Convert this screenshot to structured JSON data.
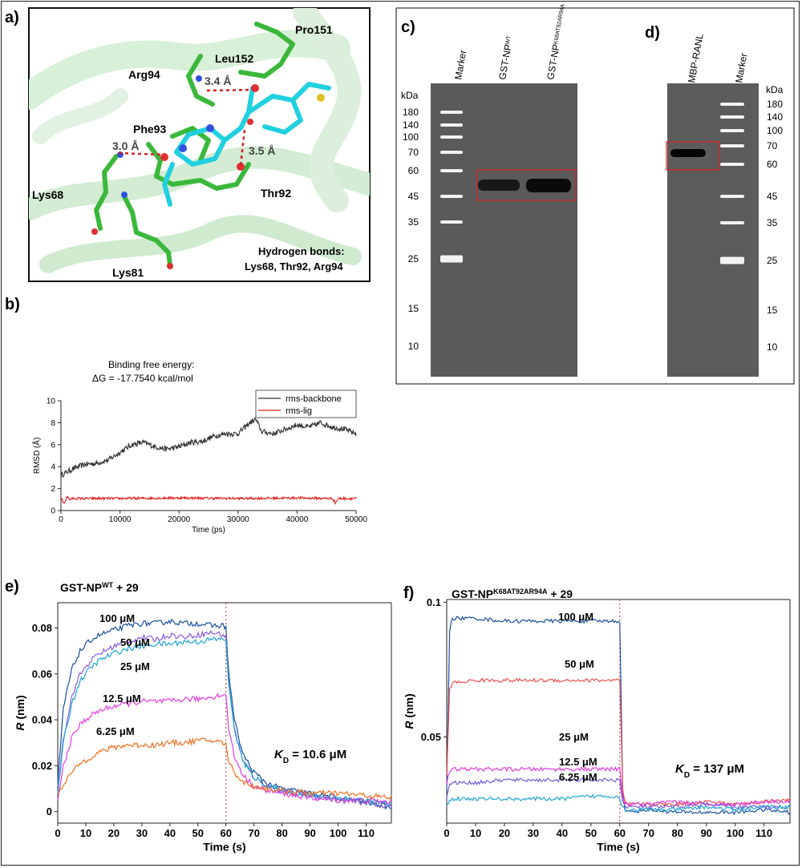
{
  "panels": {
    "a": {
      "letter": "a)",
      "residues": [
        "Pro151",
        "Leu152",
        "Arg94",
        "Phe93",
        "Lys68",
        "Thr92",
        "Lys81"
      ],
      "distances": [
        "3.4 Å",
        "3.0 Å",
        "3.5 Å"
      ],
      "hbond_title": "Hydrogen bonds:",
      "hbond_list": "Lys68, Thr92, Arg94"
    },
    "b": {
      "letter": "b)",
      "title1": "Binding free energy:",
      "title2": "ΔG = -17.7540 kcal/mol"
    },
    "c": {
      "letter": "c)",
      "kda": "kDa",
      "lanes": [
        "Marker",
        "GST-NP",
        "GST-NP"
      ],
      "lane_sup": [
        "",
        "WT",
        "K68AT92AR94A"
      ],
      "marker_sizes": [
        "180",
        "140",
        "100",
        "70",
        "60",
        "45",
        "35",
        "25",
        "15",
        "10"
      ]
    },
    "d": {
      "letter": "d)",
      "kda": "kDa",
      "lanes": [
        "MBP-RANL",
        "Marker"
      ],
      "marker_sizes": [
        "180",
        "140",
        "100",
        "70",
        "60",
        "45",
        "35",
        "25",
        "15",
        "10"
      ]
    },
    "e": {
      "letter": "e)",
      "title": "GST-NP",
      "title_sup": "WT",
      "title_suffix": " + 29",
      "kd_label": "K",
      "kd_sub": "D",
      "kd_value": " = 10.6 μM"
    },
    "f": {
      "letter": "f)",
      "title": "GST-NP",
      "title_sup": "K68AT92AR94A",
      "title_suffix": " + 29",
      "kd_label": "K",
      "kd_sub": "D",
      "kd_value": " = 137  μM"
    }
  },
  "chart_data": [
    {
      "id": "b",
      "type": "line",
      "xlabel": "Time (ps)",
      "ylabel": "RMSD (Å)",
      "xlim": [
        0,
        50000
      ],
      "ylim": [
        0,
        10
      ],
      "xticks": [
        0,
        10000,
        20000,
        30000,
        40000,
        50000
      ],
      "yticks": [
        0,
        2,
        4,
        6,
        8,
        10
      ],
      "legend_position": "top-right",
      "series": [
        {
          "name": "rms-backbone",
          "color": "#333333",
          "x": [
            0,
            2000,
            4000,
            6000,
            8000,
            10000,
            12000,
            14000,
            16000,
            18000,
            20000,
            22000,
            24000,
            26000,
            28000,
            30000,
            32000,
            33000,
            34000,
            36000,
            38000,
            40000,
            42000,
            44000,
            46000,
            48000,
            50000
          ],
          "y": [
            3.2,
            3.8,
            4.2,
            4.3,
            4.6,
            5.3,
            6.0,
            6.2,
            5.8,
            5.6,
            5.8,
            6.2,
            6.3,
            6.8,
            7.0,
            7.0,
            8.0,
            8.3,
            7.2,
            7.0,
            7.4,
            7.8,
            7.6,
            8.0,
            7.6,
            7.4,
            7.0
          ]
        },
        {
          "name": "rms-lig",
          "color": "#e02020",
          "x": [
            0,
            500,
            1000,
            1500,
            2000,
            10000,
            20000,
            30000,
            40000,
            46000,
            46500,
            47000,
            50000
          ],
          "y": [
            1.2,
            0.6,
            1.3,
            1.0,
            1.1,
            1.1,
            1.15,
            1.1,
            1.15,
            1.1,
            0.7,
            1.1,
            1.1
          ]
        }
      ]
    },
    {
      "id": "e",
      "type": "line",
      "xlabel": "Time (s)",
      "ylabel": "R (nm)",
      "xlim": [
        0,
        119
      ],
      "ylim": [
        -0.005,
        0.091
      ],
      "xticks": [
        0,
        10,
        20,
        30,
        40,
        50,
        60,
        70,
        80,
        90,
        100,
        110
      ],
      "yticks": [
        0,
        0.02,
        0.04,
        0.06,
        0.08
      ],
      "vline_x": 60,
      "series": [
        {
          "name": "100 μM",
          "color": "#1a4f9e",
          "x": [
            0,
            2,
            5,
            8,
            12,
            15,
            20,
            25,
            30,
            35,
            40,
            45,
            50,
            55,
            59,
            60,
            61,
            63,
            66,
            70,
            75,
            80,
            90,
            100,
            110,
            119
          ],
          "y": [
            0.012,
            0.045,
            0.062,
            0.07,
            0.075,
            0.077,
            0.079,
            0.081,
            0.082,
            0.082,
            0.083,
            0.082,
            0.082,
            0.081,
            0.081,
            0.08,
            0.06,
            0.04,
            0.025,
            0.017,
            0.012,
            0.01,
            0.008,
            0.006,
            0.004,
            0.002
          ]
        },
        {
          "name": "50 μM",
          "color": "#8a5cdb",
          "x": [
            0,
            2,
            5,
            8,
            12,
            15,
            20,
            25,
            30,
            35,
            40,
            45,
            50,
            55,
            59,
            60,
            61,
            63,
            66,
            70,
            75,
            80,
            90,
            100,
            110,
            119
          ],
          "y": [
            0.01,
            0.032,
            0.05,
            0.06,
            0.066,
            0.069,
            0.072,
            0.074,
            0.076,
            0.075,
            0.077,
            0.076,
            0.077,
            0.078,
            0.077,
            0.076,
            0.056,
            0.036,
            0.022,
            0.015,
            0.011,
            0.009,
            0.007,
            0.005,
            0.004,
            0.002
          ]
        },
        {
          "name": "25 μM",
          "color": "#1fa5d6",
          "x": [
            0,
            2,
            5,
            8,
            12,
            15,
            20,
            25,
            30,
            35,
            40,
            45,
            50,
            55,
            59,
            60,
            61,
            63,
            66,
            70,
            75,
            80,
            90,
            100,
            110,
            119
          ],
          "y": [
            0.008,
            0.03,
            0.047,
            0.057,
            0.063,
            0.066,
            0.069,
            0.071,
            0.072,
            0.073,
            0.073,
            0.074,
            0.074,
            0.075,
            0.075,
            0.075,
            0.055,
            0.036,
            0.022,
            0.015,
            0.011,
            0.009,
            0.007,
            0.006,
            0.005,
            0.003
          ]
        },
        {
          "name": "12.5 μM",
          "color": "#e23be0",
          "x": [
            0,
            2,
            5,
            8,
            12,
            15,
            20,
            25,
            30,
            35,
            40,
            45,
            50,
            55,
            59,
            60,
            61,
            63,
            66,
            70,
            75,
            80,
            90,
            100,
            110,
            119
          ],
          "y": [
            0.005,
            0.02,
            0.032,
            0.038,
            0.042,
            0.044,
            0.046,
            0.047,
            0.048,
            0.048,
            0.048,
            0.049,
            0.049,
            0.05,
            0.051,
            0.05,
            0.036,
            0.024,
            0.016,
            0.011,
            0.009,
            0.008,
            0.006,
            0.005,
            0.005,
            0.004
          ]
        },
        {
          "name": "6.25 μM",
          "color": "#f07020",
          "x": [
            0,
            2,
            5,
            8,
            12,
            15,
            20,
            25,
            30,
            35,
            40,
            45,
            50,
            55,
            59,
            60,
            61,
            63,
            66,
            70,
            75,
            80,
            90,
            100,
            110,
            119
          ],
          "y": [
            0.008,
            0.012,
            0.017,
            0.021,
            0.024,
            0.026,
            0.028,
            0.029,
            0.029,
            0.029,
            0.03,
            0.03,
            0.031,
            0.031,
            0.03,
            0.029,
            0.022,
            0.017,
            0.013,
            0.011,
            0.01,
            0.009,
            0.008,
            0.008,
            0.007,
            0.006
          ]
        }
      ]
    },
    {
      "id": "f",
      "type": "line",
      "xlabel": "Time (s)",
      "ylabel": "R (nm)",
      "xlim": [
        0,
        119
      ],
      "ylim": [
        0.018,
        0.101
      ],
      "xticks": [
        0,
        10,
        20,
        30,
        40,
        50,
        60,
        70,
        80,
        90,
        100,
        110
      ],
      "yticks": [
        0.05,
        0.1
      ],
      "vline_x": 60,
      "series": [
        {
          "name": "100 μM",
          "color": "#1a4f9e",
          "x": [
            0,
            1,
            2,
            10,
            20,
            30,
            40,
            50,
            59,
            60,
            61,
            62,
            70,
            80,
            90,
            100,
            110,
            119
          ],
          "y": [
            0.03,
            0.09,
            0.094,
            0.094,
            0.093,
            0.093,
            0.093,
            0.093,
            0.093,
            0.093,
            0.03,
            0.022,
            0.023,
            0.022,
            0.022,
            0.022,
            0.023,
            0.022
          ]
        },
        {
          "name": "50 μM",
          "color": "#ef5050",
          "x": [
            0,
            1,
            2,
            10,
            20,
            30,
            40,
            50,
            59,
            60,
            61,
            62,
            70,
            80,
            90,
            100,
            110,
            119
          ],
          "y": [
            0.035,
            0.068,
            0.07,
            0.071,
            0.071,
            0.071,
            0.071,
            0.071,
            0.071,
            0.071,
            0.03,
            0.025,
            0.025,
            0.025,
            0.026,
            0.025,
            0.026,
            0.027
          ]
        },
        {
          "name": "25 μM",
          "color": "#e23be0",
          "x": [
            0,
            1,
            2,
            10,
            20,
            30,
            40,
            50,
            59,
            60,
            61,
            62,
            70,
            80,
            90,
            100,
            110,
            119
          ],
          "y": [
            0.033,
            0.037,
            0.038,
            0.038,
            0.038,
            0.038,
            0.038,
            0.038,
            0.038,
            0.038,
            0.028,
            0.025,
            0.025,
            0.026,
            0.025,
            0.025,
            0.026,
            0.026
          ]
        },
        {
          "name": "12.5 μM",
          "color": "#7a5cdb",
          "x": [
            0,
            1,
            2,
            10,
            20,
            30,
            40,
            50,
            59,
            60,
            61,
            62,
            70,
            80,
            90,
            100,
            110,
            119
          ],
          "y": [
            0.028,
            0.032,
            0.033,
            0.033,
            0.034,
            0.034,
            0.034,
            0.034,
            0.034,
            0.034,
            0.026,
            0.024,
            0.024,
            0.024,
            0.025,
            0.024,
            0.024,
            0.024
          ]
        },
        {
          "name": "6.25 μM",
          "color": "#1fa5d6",
          "x": [
            0,
            1,
            2,
            10,
            20,
            30,
            40,
            50,
            59,
            60,
            61,
            62,
            70,
            80,
            90,
            100,
            110,
            119
          ],
          "y": [
            0.024,
            0.027,
            0.027,
            0.027,
            0.027,
            0.027,
            0.027,
            0.028,
            0.028,
            0.027,
            0.024,
            0.023,
            0.023,
            0.023,
            0.024,
            0.023,
            0.024,
            0.024
          ]
        }
      ]
    }
  ]
}
